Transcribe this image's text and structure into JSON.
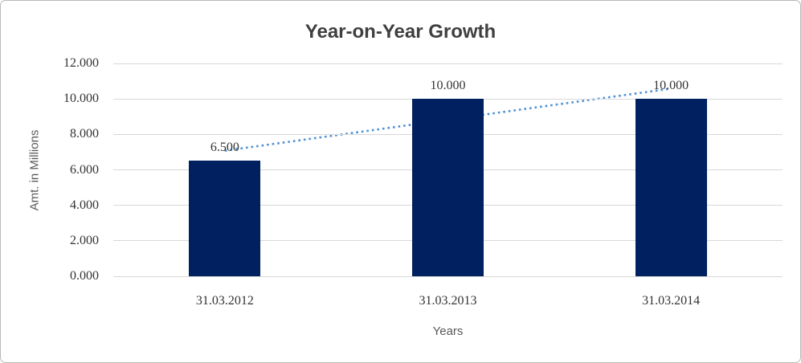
{
  "chart_data": {
    "type": "bar",
    "title": "Year-on-Year Growth",
    "categories": [
      "31.03.2012",
      "31.03.2013",
      "31.03.2014"
    ],
    "values": [
      6.5,
      10,
      10
    ],
    "data_labels": [
      "6.500",
      "10.000",
      "10.000"
    ],
    "xlabel": "Years",
    "ylabel": "Amt. in Millions",
    "ylim": [
      0,
      12
    ],
    "ytick_step": 2,
    "ytick_labels": [
      "0.000",
      "2.000",
      "4.000",
      "6.000",
      "8.000",
      "10.000",
      "12.000"
    ],
    "grid": true,
    "legend": false,
    "colors": {
      "bar": "#002060",
      "trendline": "#4E91D4",
      "gridline": "#D8D8D8",
      "title_text": "#3F3F3F",
      "tick_text": "#333333",
      "axis_title_text": "#595959"
    },
    "trendline": {
      "type": "linear",
      "style": "dotted",
      "start_value": 7.08,
      "end_value": 10.58
    }
  }
}
